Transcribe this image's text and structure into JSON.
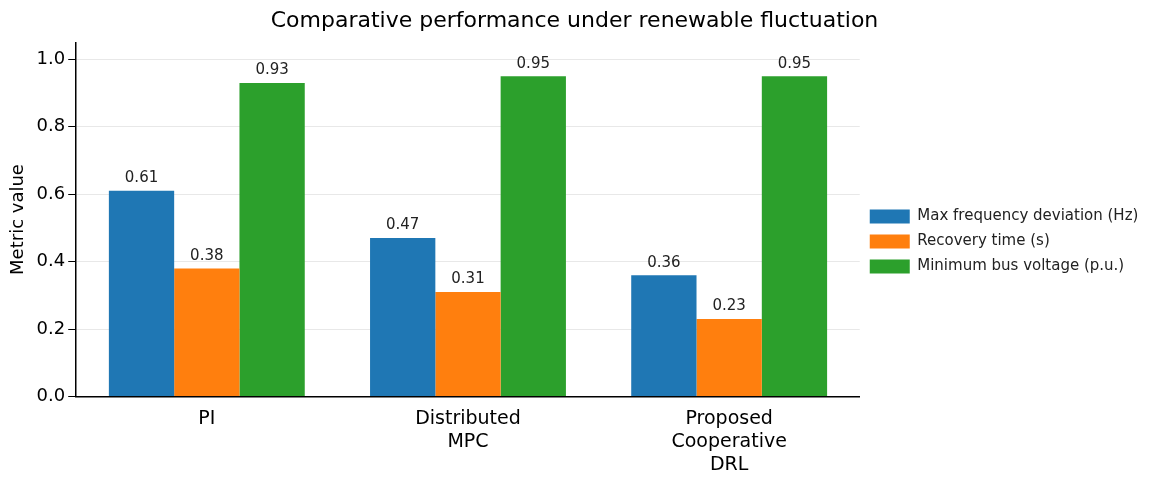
{
  "chart_data": {
    "type": "bar",
    "title": "Comparative performance under renewable fluctuation",
    "ylabel": "Metric value",
    "categories": [
      "PI",
      "Distributed MPC",
      "Proposed Cooperative DRL"
    ],
    "series": [
      {
        "name": "Max frequency deviation (Hz)",
        "color": "#1f77b4",
        "values": [
          0.61,
          0.47,
          0.36
        ]
      },
      {
        "name": "Recovery time (s)",
        "color": "#ff7f0e",
        "values": [
          0.38,
          0.31,
          0.23
        ]
      },
      {
        "name": "Minimum bus voltage (p.u.)",
        "color": "#2ca02c",
        "values": [
          0.93,
          0.95,
          0.95
        ]
      }
    ],
    "ylim": [
      0,
      1.05
    ],
    "yticks": [
      {
        "value": 0,
        "label": "0.0"
      },
      {
        "value": 0.2,
        "label": "0.2"
      },
      {
        "value": 0.4,
        "label": "0.4"
      },
      {
        "value": 0.6,
        "label": "0.6"
      },
      {
        "value": 0.8,
        "label": "0.8"
      },
      {
        "value": 1,
        "label": "1.0"
      }
    ],
    "grid": "y",
    "legend": "right",
    "data_labels": true
  }
}
